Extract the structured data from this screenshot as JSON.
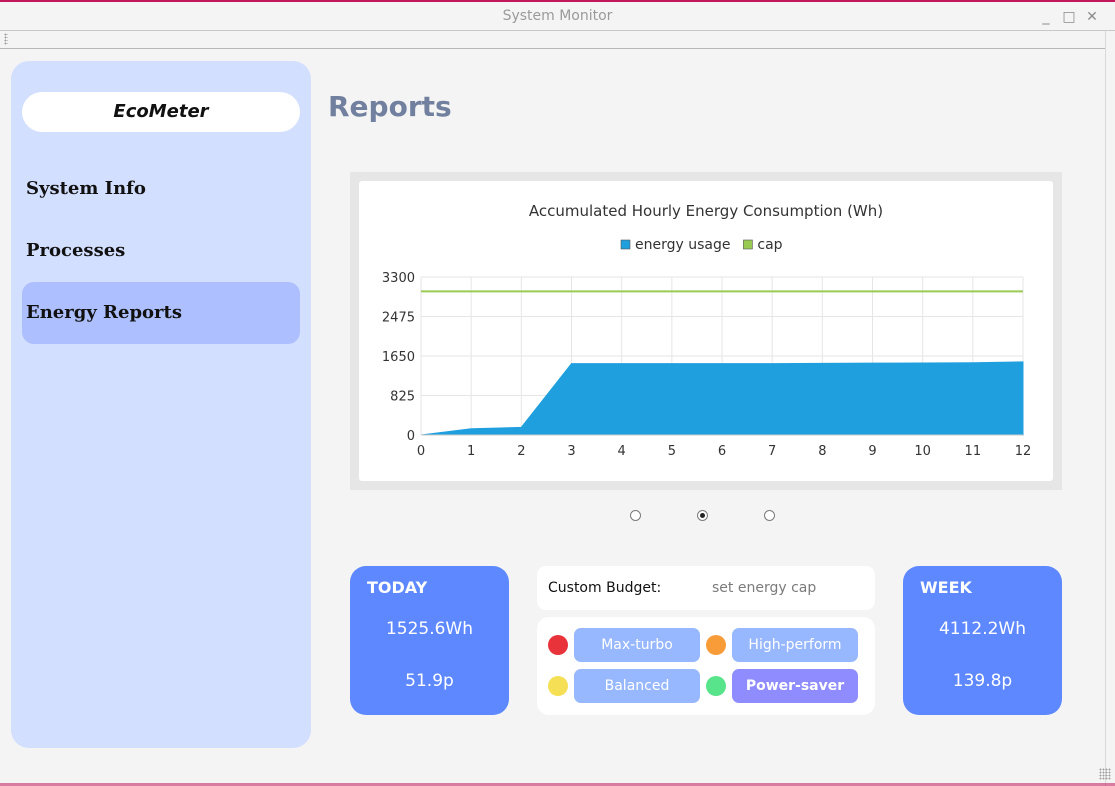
{
  "window": {
    "title": "System Monitor",
    "minimize": "_",
    "maximize": "□",
    "close": "✕"
  },
  "sidebar": {
    "brand": "EcoMeter",
    "items": [
      {
        "label": "System Info",
        "active": false
      },
      {
        "label": "Processes",
        "active": false
      },
      {
        "label": "Energy Reports",
        "active": true
      }
    ]
  },
  "page": {
    "title": "Reports"
  },
  "chart_data": {
    "type": "area",
    "title": "Accumulated Hourly Energy Consumption (Wh)",
    "legend_position": "top",
    "grid": true,
    "xlim": [
      0,
      12
    ],
    "ylim": [
      0,
      3300
    ],
    "x_ticks": [
      "0",
      "1",
      "2",
      "3",
      "4",
      "5",
      "6",
      "7",
      "8",
      "9",
      "10",
      "11",
      "12"
    ],
    "y_ticks": [
      "0",
      "825",
      "1650",
      "2475",
      "3300"
    ],
    "x": [
      0,
      1,
      2,
      3,
      4,
      5,
      6,
      7,
      8,
      9,
      10,
      11,
      12
    ],
    "series": [
      {
        "name": "energy usage",
        "type": "area",
        "color": "#209fdf",
        "values": [
          0,
          130,
          160,
          1490,
          1490,
          1490,
          1490,
          1490,
          1495,
          1500,
          1505,
          1510,
          1526
        ]
      },
      {
        "name": "cap",
        "type": "line",
        "color": "#99ca53",
        "values": [
          3000,
          3000,
          3000,
          3000,
          3000,
          3000,
          3000,
          3000,
          3000,
          3000,
          3000,
          3000,
          3000
        ]
      }
    ]
  },
  "pager": {
    "count": 3,
    "selected": 1
  },
  "today": {
    "label": "TODAY",
    "energy": "1525.6Wh",
    "cost": "51.9p"
  },
  "week": {
    "label": "WEEK",
    "energy": "4112.2Wh",
    "cost": "139.8p"
  },
  "budget": {
    "label": "Custom Budget:",
    "placeholder": "set energy cap",
    "value": ""
  },
  "modes": [
    {
      "label": "Max-turbo",
      "color": "#e8333b",
      "active": false
    },
    {
      "label": "High-perform",
      "color": "#f89c3a",
      "active": false
    },
    {
      "label": "Balanced",
      "color": "#f5e055",
      "active": false
    },
    {
      "label": "Power-saver",
      "color": "#57e48a",
      "active": true
    }
  ]
}
